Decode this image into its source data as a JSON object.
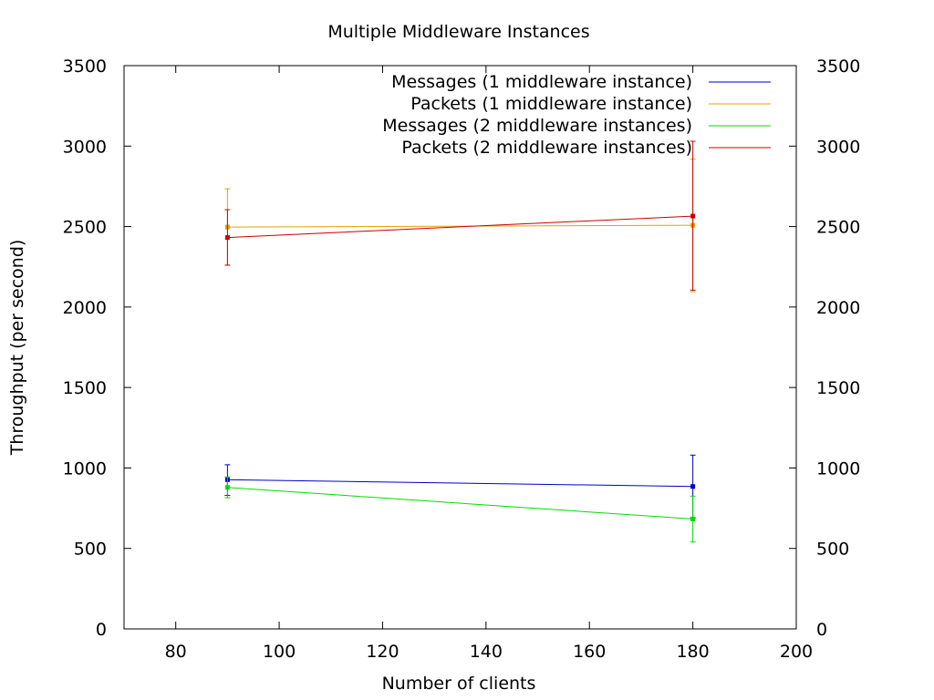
{
  "chart_data": {
    "type": "line",
    "title": "Multiple Middleware Instances",
    "xlabel": "Number of clients",
    "ylabel": "Throughput (per second)",
    "xlim": [
      70,
      200
    ],
    "ylim": [
      0,
      3500
    ],
    "xticks": [
      80,
      100,
      120,
      140,
      160,
      180,
      200
    ],
    "yticks": [
      0,
      500,
      1000,
      1500,
      2000,
      2500,
      3000,
      3500
    ],
    "y2ticks": [
      0,
      500,
      1000,
      1500,
      2000,
      2500,
      3000,
      3500
    ],
    "grid": false,
    "legend_position": "top-right",
    "series": [
      {
        "name": "Messages (1 middleware instance)",
        "color": "#0000cc",
        "points": [
          {
            "x": 90,
            "y": 927,
            "err_low": 830,
            "err_high": 1020
          },
          {
            "x": 180,
            "y": 885,
            "err_low": 690,
            "err_high": 1080
          }
        ]
      },
      {
        "name": "Packets (1 middleware instance)",
        "color": "#e6a000",
        "points": [
          {
            "x": 90,
            "y": 2497,
            "err_low": 2260,
            "err_high": 2735
          },
          {
            "x": 180,
            "y": 2508,
            "err_low": 2095,
            "err_high": 2920
          }
        ]
      },
      {
        "name": "Messages (2 middleware instances)",
        "color": "#00dd00",
        "points": [
          {
            "x": 90,
            "y": 879,
            "err_low": 815,
            "err_high": 945
          },
          {
            "x": 180,
            "y": 683,
            "err_low": 540,
            "err_high": 825
          }
        ]
      },
      {
        "name": "Packets (2 middleware instances)",
        "color": "#cc0000",
        "points": [
          {
            "x": 90,
            "y": 2432,
            "err_low": 2260,
            "err_high": 2605
          },
          {
            "x": 180,
            "y": 2565,
            "err_low": 2105,
            "err_high": 3030
          }
        ]
      }
    ]
  }
}
